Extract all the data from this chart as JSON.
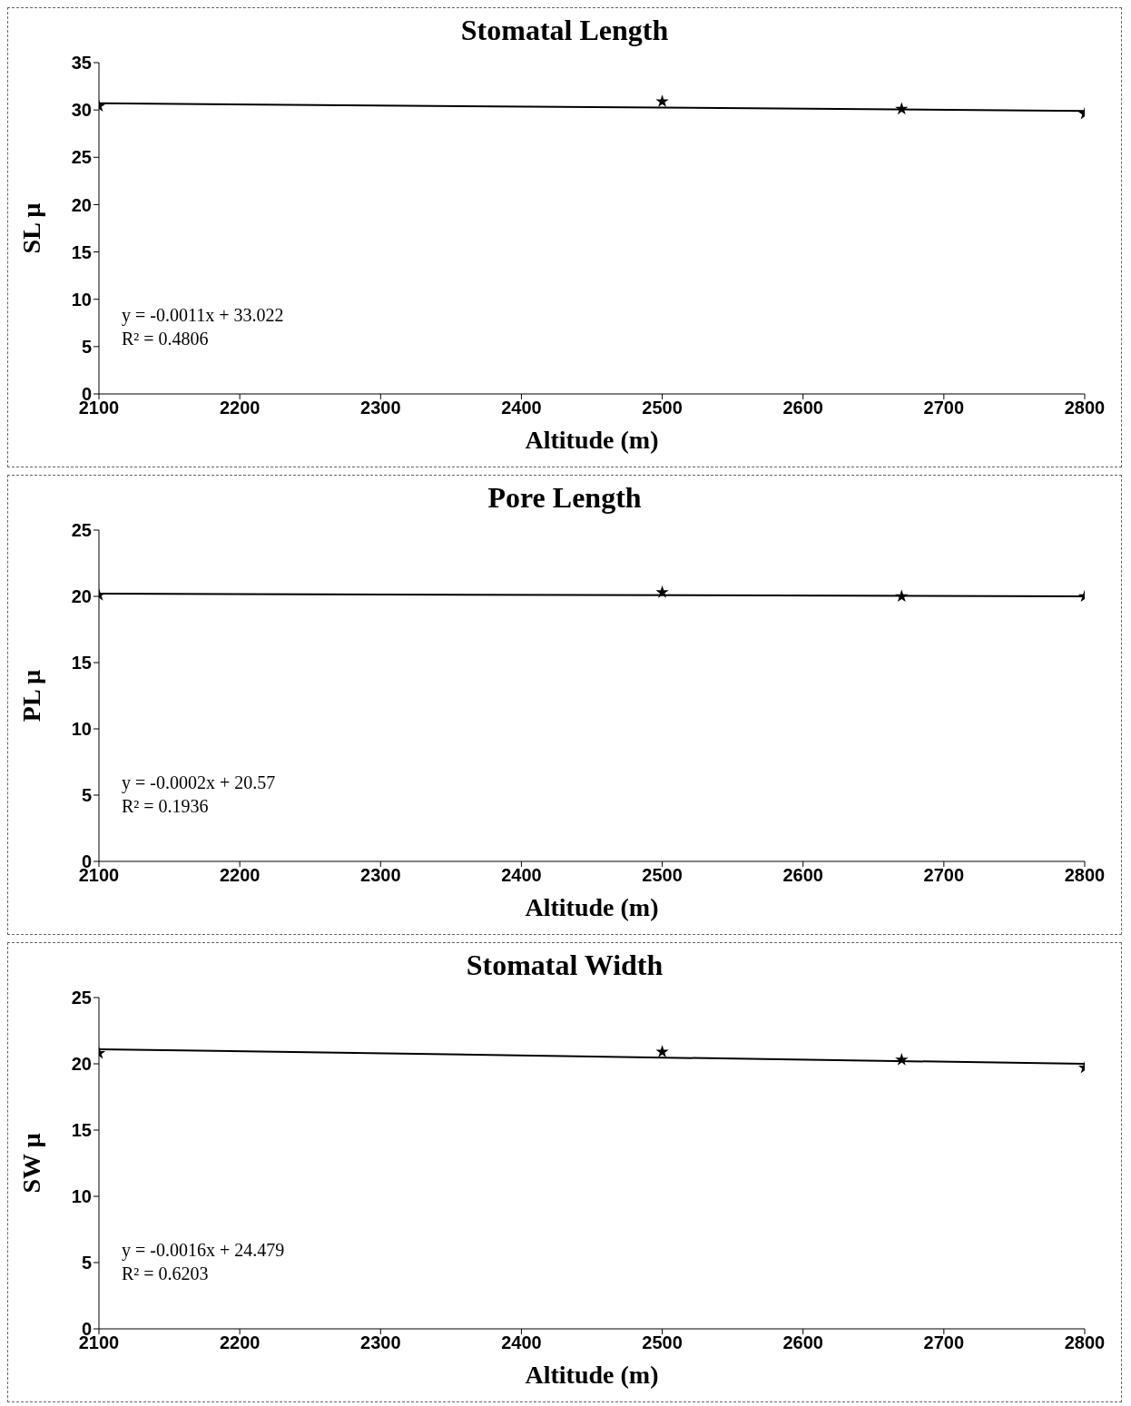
{
  "chart_data": [
    {
      "type": "scatter",
      "title": "Stomatal Length",
      "xlabel": "Altitude (m)",
      "ylabel": "SL µ",
      "xlim": [
        2100,
        2800
      ],
      "xticks": [
        2100,
        2200,
        2300,
        2400,
        2500,
        2600,
        2700,
        2800
      ],
      "ylim": [
        0,
        35
      ],
      "yticks": [
        0,
        5,
        10,
        15,
        20,
        25,
        30,
        35
      ],
      "grid": false,
      "annotations": [
        "y = -0.0011x + 33.022",
        "R² = 0.4806"
      ],
      "series": [
        {
          "color": "#000000",
          "marker": "star",
          "x": [
            2100,
            2500,
            2670,
            2800
          ],
          "values": [
            30.4,
            30.9,
            30.1,
            29.6
          ]
        },
        {
          "type": "line",
          "color": "#000000",
          "marker": "none",
          "x": [
            2100,
            2800
          ],
          "values": [
            30.7,
            29.9
          ]
        }
      ]
    },
    {
      "type": "scatter",
      "title": "Pore Length",
      "xlabel": "Altitude (m)",
      "ylabel": "PL µ",
      "xlim": [
        2100,
        2800
      ],
      "xticks": [
        2100,
        2200,
        2300,
        2400,
        2500,
        2600,
        2700,
        2800
      ],
      "ylim": [
        0,
        25
      ],
      "yticks": [
        0,
        5,
        10,
        15,
        20,
        25
      ],
      "grid": false,
      "annotations": [
        "y = -0.0002x + 20.57",
        "R² = 0.1936"
      ],
      "series": [
        {
          "color": "#000000",
          "marker": "star",
          "x": [
            2100,
            2500,
            2670,
            2800
          ],
          "values": [
            20.1,
            20.3,
            20.0,
            20.0
          ]
        },
        {
          "type": "line",
          "color": "#000000",
          "marker": "none",
          "x": [
            2100,
            2800
          ],
          "values": [
            20.2,
            20.0
          ]
        }
      ]
    },
    {
      "type": "scatter",
      "title": "Stomatal Width",
      "xlabel": "Altitude (m)",
      "ylabel": "SW µ",
      "xlim": [
        2100,
        2800
      ],
      "xticks": [
        2100,
        2200,
        2300,
        2400,
        2500,
        2600,
        2700,
        2800
      ],
      "ylim": [
        0,
        25
      ],
      "yticks": [
        0,
        5,
        10,
        15,
        20,
        25
      ],
      "grid": false,
      "annotations": [
        "y = -0.0016x + 24.479",
        "R² = 0.6203"
      ],
      "series": [
        {
          "color": "#000000",
          "marker": "star",
          "x": [
            2100,
            2500,
            2670,
            2800
          ],
          "values": [
            20.8,
            20.9,
            20.3,
            19.7
          ]
        },
        {
          "type": "line",
          "color": "#000000",
          "marker": "none",
          "x": [
            2100,
            2800
          ],
          "values": [
            21.1,
            20.0
          ]
        }
      ]
    }
  ]
}
